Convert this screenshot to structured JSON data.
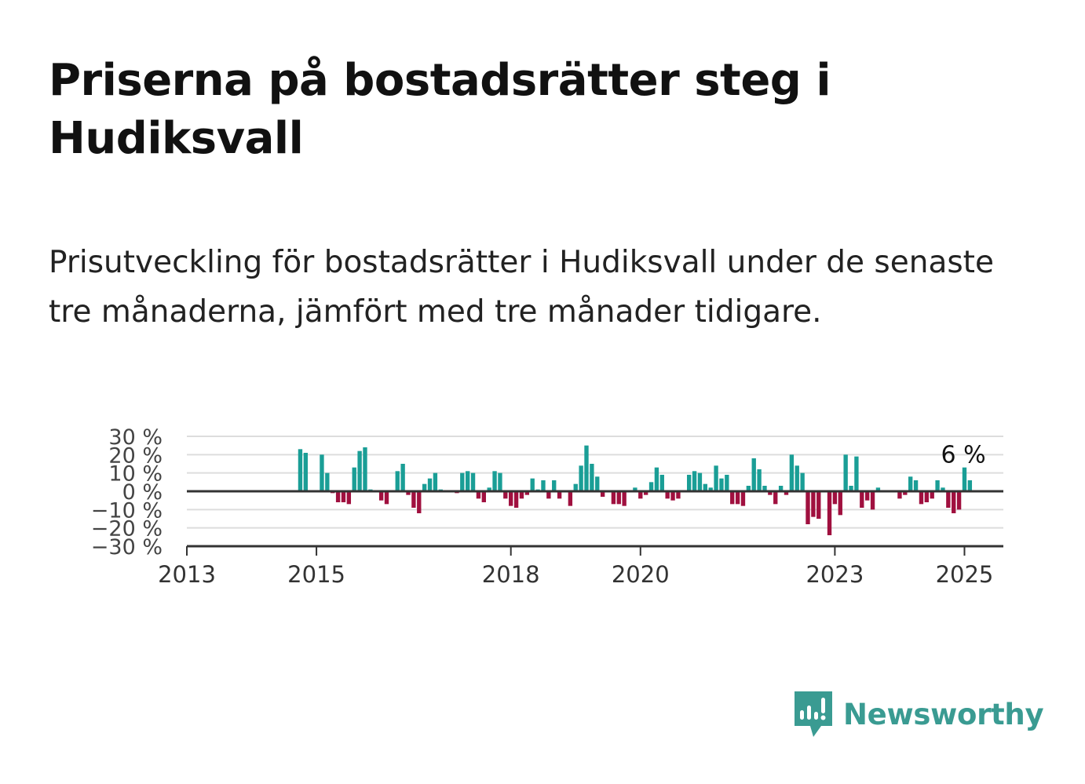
{
  "title": "Priserna på bostadsrätter steg i Hudiksvall",
  "subtitle": "Prisutveckling för bostadsrätter i Hudiksvall under de senaste tre månaderna, jämfört med tre månader tidigare.",
  "brand": {
    "name": "Newsworthy",
    "icon": "newsworthy-logo-icon",
    "color": "#3a9b92"
  },
  "colors": {
    "positive": "#1a9e96",
    "negative": "#a0103f",
    "grid": "#dddddd",
    "axis": "#333333"
  },
  "chart_data": {
    "type": "bar",
    "title": "",
    "xlabel": "",
    "ylabel": "",
    "ylim": [
      -30,
      30
    ],
    "yticks": [
      30,
      20,
      10,
      0,
      -10,
      -20,
      -30
    ],
    "ytick_labels": [
      "30 %",
      "20 %",
      "10 %",
      "0 %",
      "−10 %",
      "−20 %",
      "−30 %"
    ],
    "xlim": [
      2013.0,
      2025.6
    ],
    "xticks": [
      2013,
      2015,
      2018,
      2020,
      2023,
      2025
    ],
    "xtick_labels": [
      "2013",
      "2015",
      "2018",
      "2020",
      "2023",
      "2025"
    ],
    "grid": true,
    "legend": "none",
    "annotation": {
      "label": "6 %",
      "x": 2025.0,
      "y": 6
    },
    "start": "2014-10",
    "interval": "month",
    "values": [
      23,
      21,
      null,
      null,
      20,
      10,
      -1,
      -6,
      -6,
      -7,
      13,
      22,
      24,
      1,
      null,
      -5,
      -7,
      null,
      11,
      15,
      -2,
      -9,
      -12,
      4,
      7,
      10,
      1,
      null,
      null,
      -1,
      10,
      11,
      10,
      -4,
      -6,
      2,
      11,
      10,
      -4,
      -8,
      -9,
      -4,
      -2,
      7,
      1,
      6,
      -4,
      6,
      -4,
      null,
      -8,
      4,
      14,
      25,
      15,
      8,
      -3,
      null,
      -7,
      -7,
      -8,
      null,
      2,
      -4,
      -2,
      5,
      13,
      9,
      -4,
      -5,
      -4,
      null,
      9,
      11,
      10,
      4,
      2,
      14,
      7,
      9,
      -7,
      -7,
      -8,
      3,
      18,
      12,
      3,
      -2,
      -7,
      3,
      -2,
      20,
      14,
      10,
      -18,
      -14,
      -15,
      null,
      -24,
      -7,
      -13,
      20,
      3,
      19,
      -9,
      -5,
      -10,
      2,
      null,
      null,
      null,
      -4,
      -2,
      8,
      6,
      -7,
      -6,
      -4,
      6,
      2,
      -9,
      -12,
      -10,
      13,
      6
    ]
  }
}
